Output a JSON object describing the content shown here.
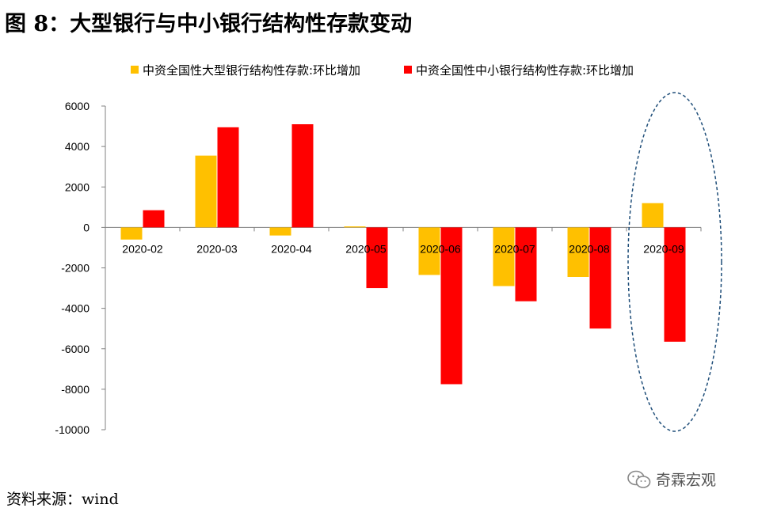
{
  "figure": {
    "title": "图 8：大型银行与中小银行结构性存款变动",
    "source": "资料来源：wind",
    "watermark": "奇霖宏观"
  },
  "chart_data": {
    "type": "bar",
    "categories": [
      "2020-02",
      "2020-03",
      "2020-04",
      "2020-05",
      "2020-06",
      "2020-07",
      "2020-08",
      "2020-09"
    ],
    "series": [
      {
        "name": "中资全国性大型银行结构性存款:环比增加",
        "color": "#FFC000",
        "values": [
          -600,
          3550,
          -400,
          50,
          -2350,
          -2900,
          -2450,
          1200
        ]
      },
      {
        "name": "中资全国性中小银行结构性存款:环比增加",
        "color": "#FF0000",
        "values": [
          850,
          4950,
          5100,
          -3000,
          -7750,
          -3650,
          -5000,
          -5650
        ]
      }
    ],
    "ylim": [
      -10000,
      6000
    ],
    "yticks": [
      "6000",
      "4000",
      "2000",
      "0",
      "-2000",
      "-4000",
      "-6000",
      "-8000",
      "-10000"
    ],
    "ytick_values": [
      6000,
      4000,
      2000,
      0,
      -2000,
      -4000,
      -6000,
      -8000,
      -10000
    ],
    "grid": false,
    "legend_position": "top",
    "highlight_category": "2020-09",
    "xlabel": "",
    "ylabel": ""
  }
}
